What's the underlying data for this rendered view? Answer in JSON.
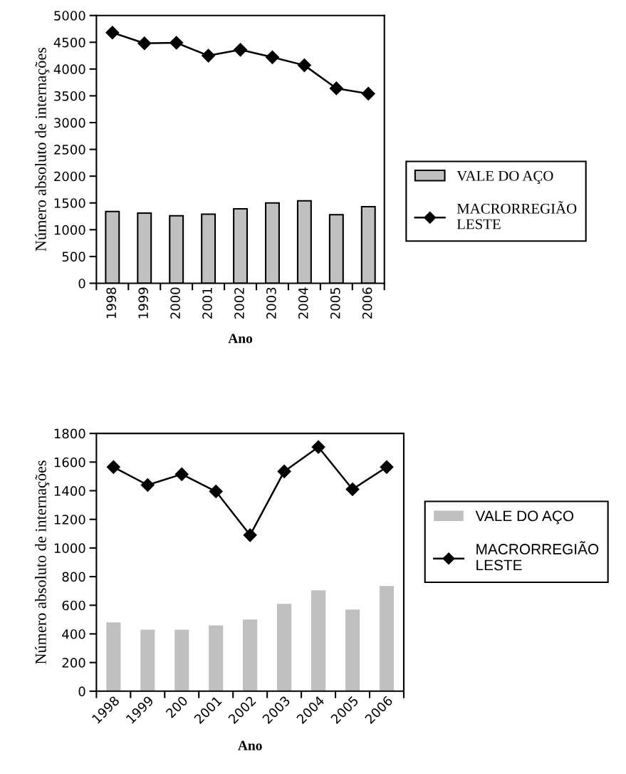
{
  "chart_data": [
    {
      "type": "bar",
      "categories": [
        "1998",
        "1999",
        "2000",
        "2001",
        "2002",
        "2003",
        "2004",
        "2005",
        "2006"
      ],
      "xlabel": "Ano",
      "ylabel": "Número absoluto de internações",
      "ylim": [
        0,
        5000
      ],
      "yticks": [
        0,
        500,
        1000,
        1500,
        2000,
        2500,
        3000,
        3500,
        4000,
        4500,
        5000
      ],
      "legend": "right",
      "grid": false,
      "series": [
        {
          "name": "VALE DO AÇO",
          "color": "#c0c0c0",
          "values": [
            1340,
            1310,
            1260,
            1290,
            1390,
            1500,
            1540,
            1280,
            1430
          ]
        },
        {
          "name": "MACRORREGIÃO LESTE",
          "type": "line",
          "color": "#000000",
          "marker": "diamond",
          "values": [
            4680,
            4480,
            4490,
            4250,
            4360,
            4220,
            4070,
            3640,
            3540
          ]
        }
      ]
    },
    {
      "type": "bar",
      "categories": [
        "1998",
        "1999",
        "200",
        "2001",
        "2002",
        "2003",
        "2004",
        "2005",
        "2006"
      ],
      "xlabel": "Ano",
      "ylabel": "Número absoluto de internações",
      "ylim": [
        0,
        1800
      ],
      "yticks": [
        0,
        200,
        400,
        600,
        800,
        1000,
        1200,
        1400,
        1600,
        1800
      ],
      "legend": "right",
      "grid": false,
      "series": [
        {
          "name": "VALE DO AÇO",
          "color": "#c0c0c0",
          "values": [
            480,
            430,
            430,
            460,
            500,
            610,
            705,
            570,
            735
          ]
        },
        {
          "name": "MACRORREGIÃO LESTE",
          "type": "line",
          "color": "#000000",
          "marker": "diamond",
          "values": [
            1565,
            1440,
            1515,
            1395,
            1090,
            1535,
            1705,
            1410,
            1565
          ]
        }
      ]
    }
  ]
}
